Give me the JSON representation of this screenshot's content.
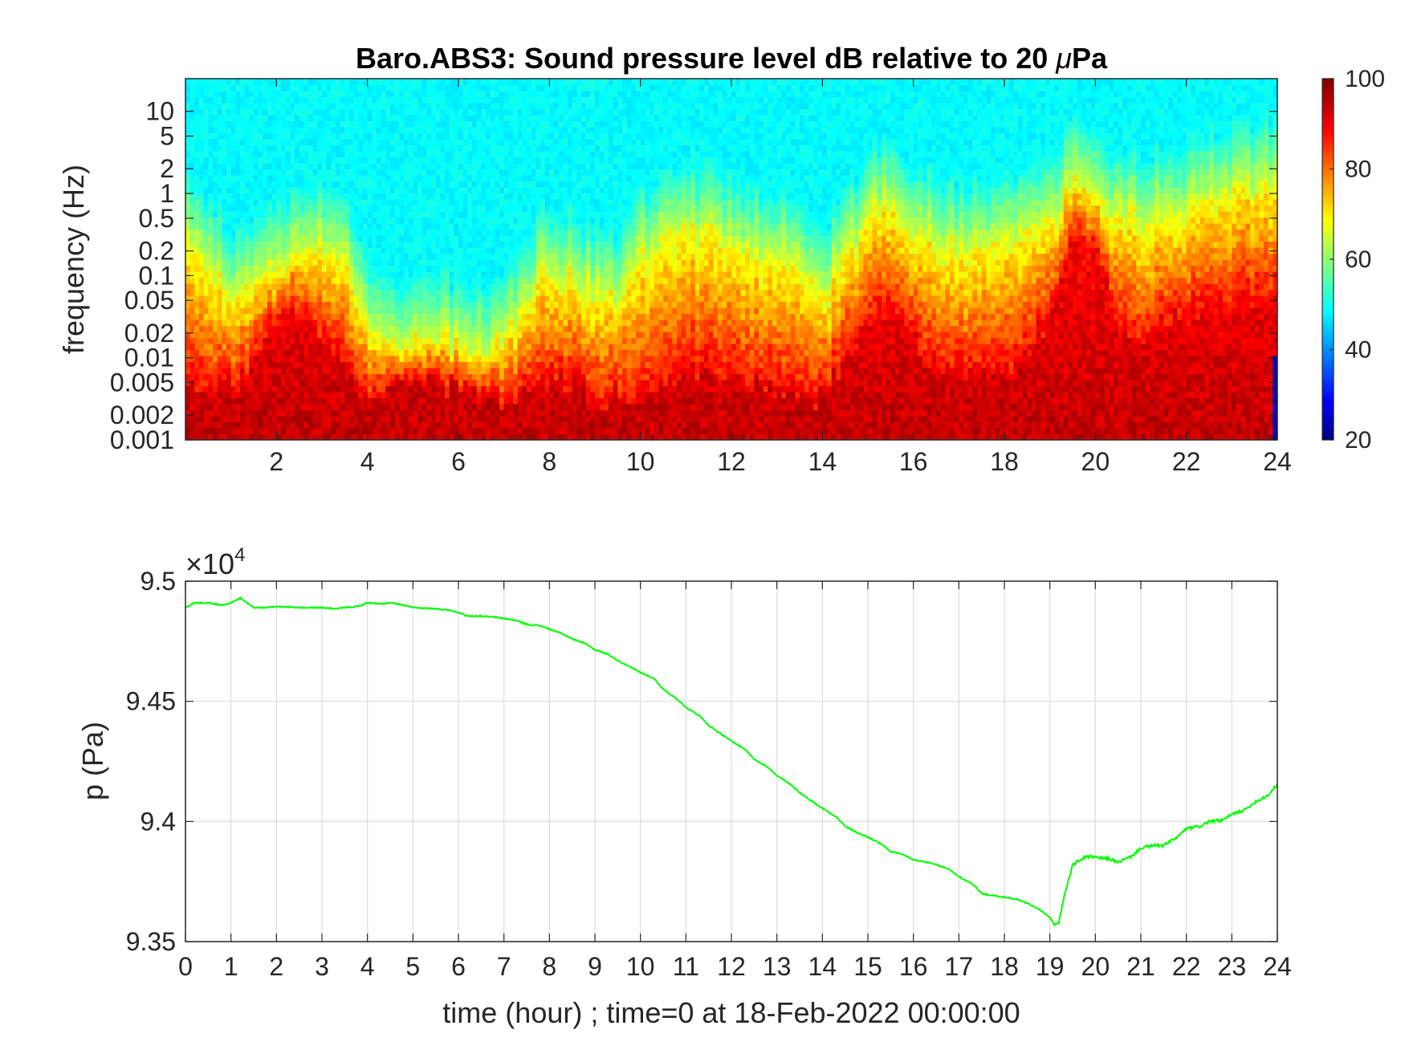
{
  "chart_data": [
    {
      "type": "heatmap",
      "title_prefix": "Baro.ABS3: Sound pressure level dB relative to 20 ",
      "title_mu": "μ",
      "title_suffix": "Pa",
      "ylabel": "frequency (Hz)",
      "xlim": [
        0,
        24
      ],
      "xticks": [
        2,
        4,
        6,
        8,
        10,
        12,
        14,
        16,
        18,
        20,
        22,
        24
      ],
      "ylim": [
        0.001,
        25
      ],
      "yscale": "log",
      "yticks": [
        0.001,
        0.002,
        0.005,
        0.01,
        0.02,
        0.05,
        0.1,
        0.2,
        0.5,
        1,
        2,
        5,
        10
      ],
      "ytick_labels": [
        "0.001",
        "0.002",
        "0.005",
        "0.01",
        "0.02",
        "0.05",
        "0.1",
        "0.2",
        "0.5",
        "1",
        "2",
        "5",
        "10"
      ],
      "colorbar": {
        "range": [
          20,
          100
        ],
        "ticks": [
          20,
          40,
          60,
          80,
          100
        ],
        "colormap": "jet"
      },
      "background_level_db": 49,
      "event_profile": {
        "x_hours": [
          0,
          0.5,
          1,
          1.5,
          2,
          2.5,
          3,
          3.5,
          4,
          4.5,
          5,
          5.5,
          6,
          6.5,
          7,
          7.5,
          8,
          8.5,
          9,
          9.5,
          10,
          10.5,
          11,
          11.5,
          12,
          12.5,
          13,
          13.5,
          14,
          14.5,
          15,
          15.5,
          16,
          16.5,
          17,
          17.5,
          18,
          18.5,
          19,
          19.5,
          20,
          20.5,
          21,
          21.5,
          22,
          22.5,
          23,
          23.5,
          24
        ],
        "upper_extent_log10_hz": [
          -0.5,
          -0.8,
          -1.2,
          -1.0,
          -0.9,
          -0.7,
          -0.6,
          -0.8,
          -1.5,
          -1.8,
          -1.8,
          -1.7,
          -1.8,
          -1.9,
          -1.8,
          -1.2,
          -0.9,
          -1.0,
          -1.2,
          -1.3,
          -0.7,
          -0.6,
          -0.5,
          -0.5,
          -0.6,
          -0.7,
          -0.7,
          -0.9,
          -1.2,
          -0.8,
          -0.3,
          -0.1,
          -0.5,
          -0.5,
          -0.7,
          -0.6,
          -0.5,
          -0.5,
          -0.3,
          0.2,
          0.1,
          -0.3,
          -0.3,
          -0.2,
          -0.2,
          0.0,
          0.0,
          0.1,
          0.1
        ],
        "core_extent_log10_hz": [
          -2.3,
          -2.4,
          -2.4,
          -2.1,
          -1.6,
          -1.4,
          -1.8,
          -2.1,
          -2.5,
          -2.4,
          -2.3,
          -2.3,
          -2.4,
          -2.5,
          -2.5,
          -2.4,
          -2.3,
          -2.3,
          -2.5,
          -2.5,
          -2.4,
          -2.3,
          -2.2,
          -2.2,
          -2.3,
          -2.3,
          -2.4,
          -2.5,
          -2.5,
          -2.0,
          -1.6,
          -1.4,
          -1.8,
          -2.1,
          -2.2,
          -2.2,
          -2.2,
          -1.9,
          -1.5,
          -0.6,
          -0.7,
          -1.6,
          -1.8,
          -1.6,
          -1.5,
          -1.4,
          -1.4,
          -1.3,
          -1.3
        ]
      }
    },
    {
      "type": "line",
      "ylabel": "p (Pa)",
      "xlabel": "time (hour) ; time=0 at 18-Feb-2022 00:00:00",
      "xlim": [
        0,
        24
      ],
      "xticks": [
        0,
        1,
        2,
        3,
        4,
        5,
        6,
        7,
        8,
        9,
        10,
        11,
        12,
        13,
        14,
        15,
        16,
        17,
        18,
        19,
        20,
        21,
        22,
        23,
        24
      ],
      "ylim": [
        9.35,
        9.5
      ],
      "yticks": [
        9.35,
        9.4,
        9.45,
        9.5
      ],
      "ytick_labels": [
        "9.35",
        "9.4",
        "9.45",
        "9.5"
      ],
      "exponent_prefix": "×10",
      "exponent_power": "4",
      "grid": true,
      "line_color": "#00ff00",
      "series": [
        {
          "x": [
            0,
            0.2,
            0.5,
            0.8,
            1.0,
            1.2,
            1.5,
            1.8,
            2.0,
            2.5,
            3.0,
            3.3,
            3.5,
            3.8,
            4.0,
            4.3,
            4.5,
            4.8,
            5.0,
            5.5,
            5.8,
            6.0,
            6.2,
            6.5,
            6.8,
            7.0,
            7.3,
            7.5,
            7.8,
            8.0,
            8.3,
            8.5,
            8.8,
            9.0,
            9.3,
            9.5,
            9.8,
            10.0,
            10.3,
            10.5,
            10.8,
            11.0,
            11.3,
            11.5,
            11.8,
            12.0,
            12.3,
            12.5,
            12.8,
            13.0,
            13.3,
            13.5,
            13.8,
            14.0,
            14.3,
            14.5,
            14.8,
            15.0,
            15.3,
            15.5,
            15.8,
            16.0,
            16.3,
            16.5,
            16.8,
            17.0,
            17.3,
            17.5,
            17.8,
            18.0,
            18.3,
            18.5,
            18.8,
            19.0,
            19.1,
            19.2,
            19.3,
            19.5,
            19.8,
            20.0,
            20.3,
            20.5,
            20.8,
            21.0,
            21.3,
            21.5,
            21.8,
            22.0,
            22.3,
            22.5,
            22.8,
            23.0,
            23.3,
            23.5,
            23.8,
            24.0
          ],
          "y": [
            9.489,
            9.491,
            9.491,
            9.49,
            9.491,
            9.493,
            9.489,
            9.489,
            9.4895,
            9.489,
            9.489,
            9.4885,
            9.489,
            9.4895,
            9.491,
            9.4905,
            9.491,
            9.49,
            9.489,
            9.4885,
            9.488,
            9.487,
            9.4855,
            9.4855,
            9.485,
            9.4845,
            9.4835,
            9.482,
            9.4815,
            9.48,
            9.478,
            9.476,
            9.474,
            9.4715,
            9.4695,
            9.467,
            9.464,
            9.462,
            9.4595,
            9.455,
            9.451,
            9.4475,
            9.444,
            9.44,
            9.436,
            9.4335,
            9.43,
            9.426,
            9.4225,
            9.419,
            9.4155,
            9.412,
            9.408,
            9.4055,
            9.402,
            9.398,
            9.395,
            9.3935,
            9.3905,
            9.3875,
            9.386,
            9.384,
            9.383,
            9.382,
            9.38,
            9.377,
            9.374,
            9.37,
            9.369,
            9.3685,
            9.3675,
            9.366,
            9.363,
            9.36,
            9.357,
            9.358,
            9.368,
            9.382,
            9.3855,
            9.385,
            9.3845,
            9.383,
            9.3855,
            9.389,
            9.39,
            9.39,
            9.3935,
            9.397,
            9.398,
            9.4,
            9.4005,
            9.403,
            9.405,
            9.408,
            9.411,
            9.4155
          ]
        }
      ]
    }
  ]
}
